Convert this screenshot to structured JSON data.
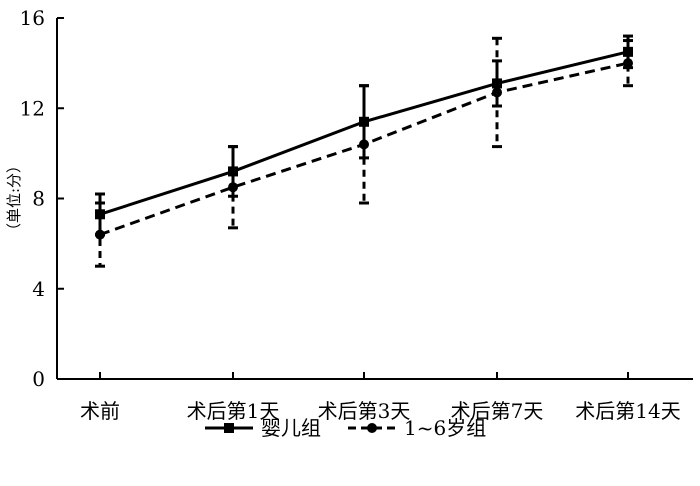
{
  "chart_data": {
    "type": "line",
    "title": "",
    "xlabel": "",
    "ylabel": "（单位:分）",
    "ylim": [
      0,
      16
    ],
    "yticks": [
      0,
      4,
      8,
      12,
      16
    ],
    "grid": false,
    "legend_position": "bottom",
    "categories": [
      "术前",
      "术后第1天",
      "术后第3天",
      "术后第7天",
      "术后第14天"
    ],
    "series": [
      {
        "name": "婴儿组",
        "line_style": "solid",
        "marker": "square",
        "color": "#000000",
        "values": [
          7.3,
          9.2,
          11.4,
          13.1,
          14.5
        ],
        "error": [
          0.9,
          1.1,
          1.6,
          1.0,
          0.7
        ]
      },
      {
        "name": "1~6岁组",
        "line_style": "dashed",
        "marker": "circle",
        "color": "#000000",
        "values": [
          6.4,
          8.5,
          10.4,
          12.7,
          14.0
        ],
        "error": [
          1.4,
          1.8,
          2.6,
          2.4,
          1.0
        ]
      }
    ]
  }
}
